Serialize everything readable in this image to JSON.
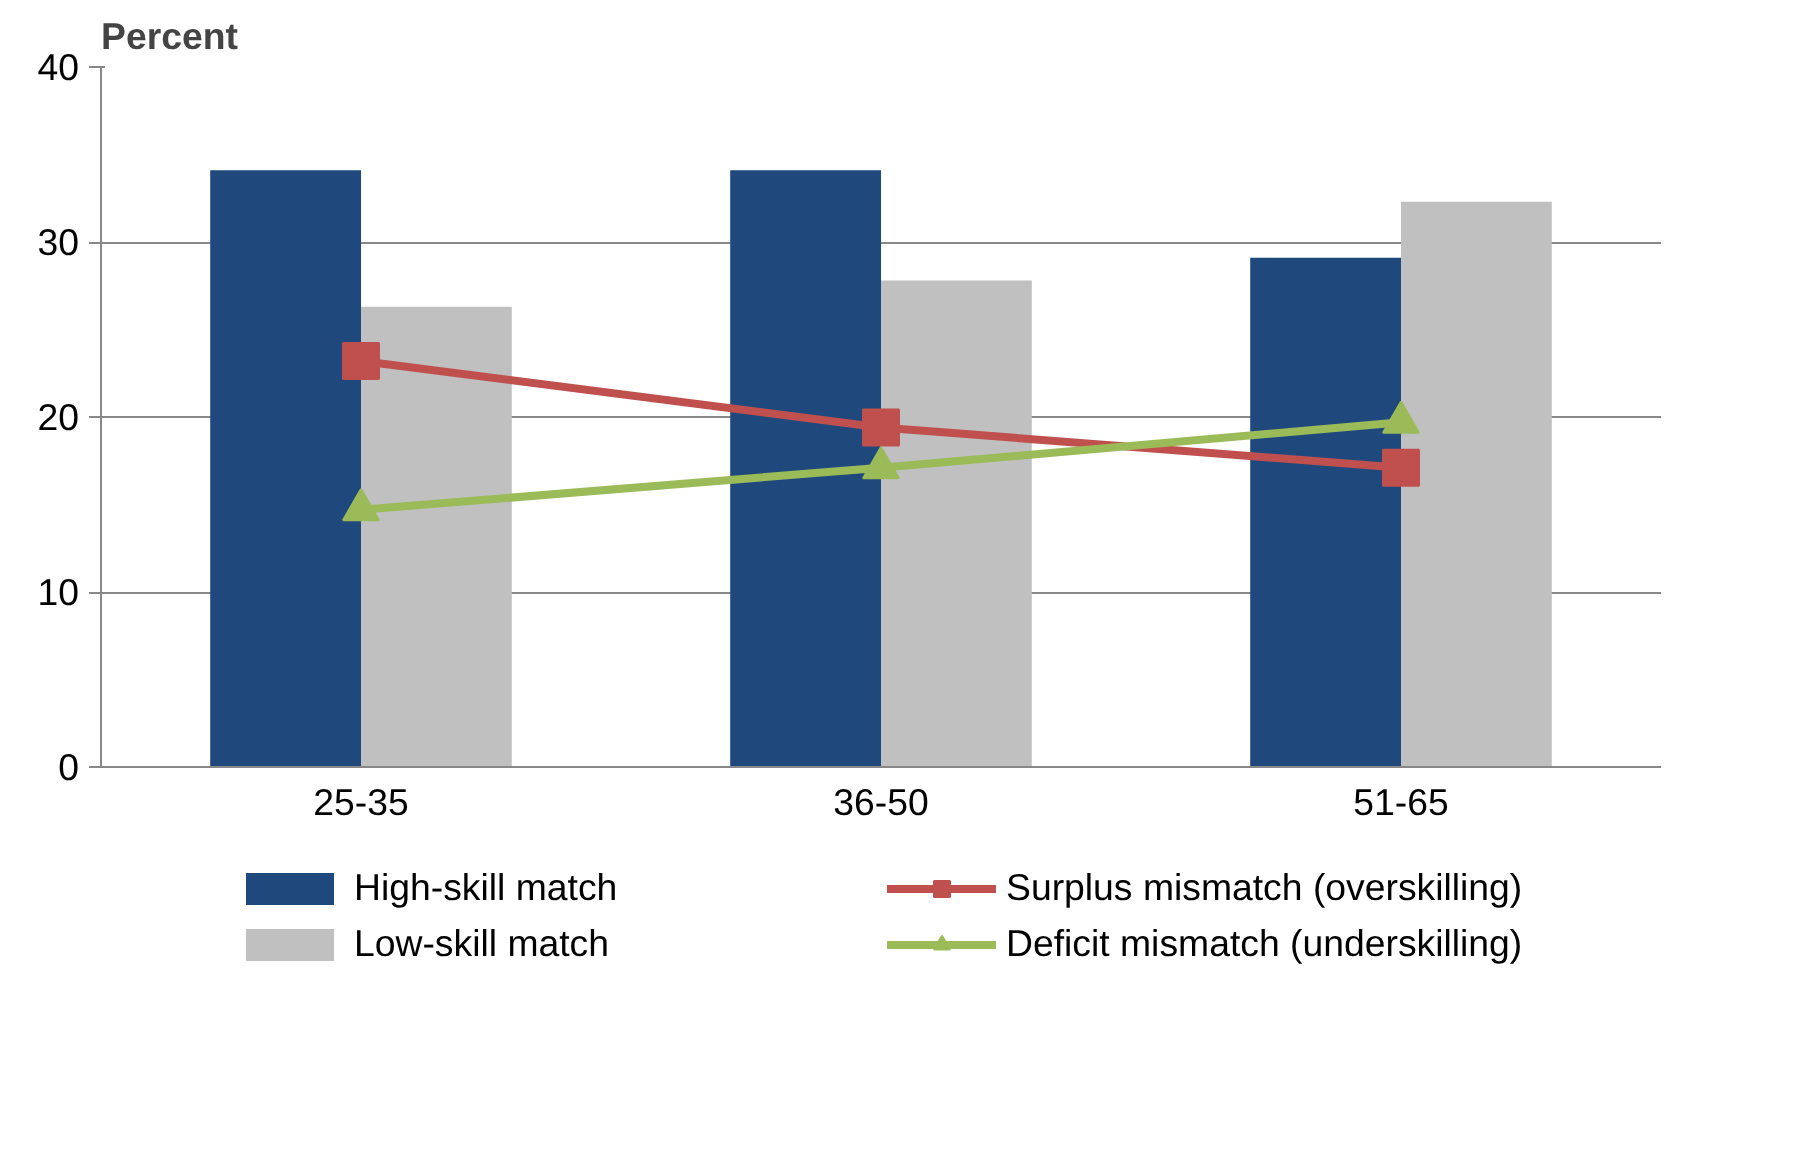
{
  "chart_data": {
    "type": "bar",
    "ylabel": "Percent",
    "categories": [
      "25-35",
      "36-50",
      "51-65"
    ],
    "series": [
      {
        "name": "High-skill match",
        "color": "#1f497d",
        "values": [
          34.1,
          34.1,
          29.1
        ]
      },
      {
        "name": "Low-skill match",
        "color": "#c0c0c0",
        "values": [
          26.3,
          27.8,
          32.3
        ]
      },
      {
        "name": "Surplus mismatch (overskilling)",
        "type": "line",
        "marker": "square",
        "color": "#c0504d",
        "values": [
          23.2,
          19.4,
          17.1
        ]
      },
      {
        "name": "Deficit mismatch (underskilling)",
        "type": "line",
        "marker": "triangle",
        "color": "#9bbb59",
        "values": [
          14.7,
          17.1,
          19.7
        ]
      }
    ],
    "ylim": [
      0,
      40
    ],
    "yticks": [
      0,
      10,
      20,
      30,
      40
    ],
    "grid": "y",
    "legend": "bottom"
  }
}
